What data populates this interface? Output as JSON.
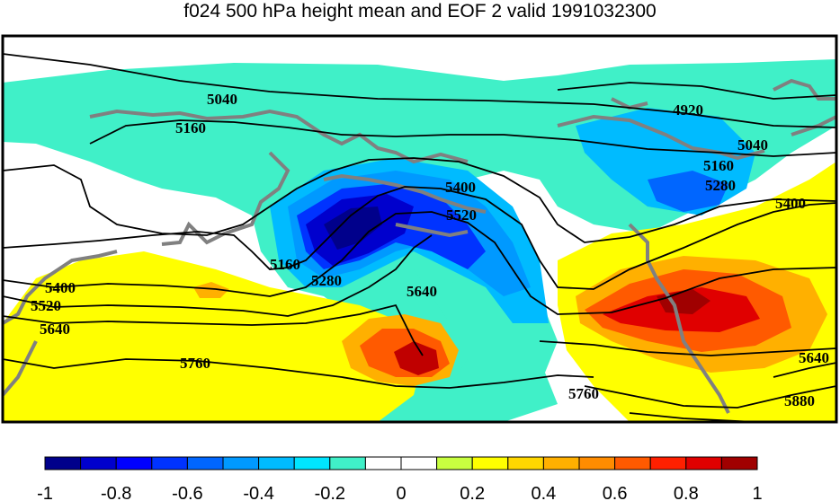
{
  "title": "f024 500 hPa height mean and EOF 2 valid 1991032300",
  "contour_labels": [
    "5040",
    "5160",
    "4920",
    "5040",
    "5160",
    "5280",
    "5400",
    "5520",
    "5400",
    "5160",
    "5280",
    "5640",
    "5400",
    "5520",
    "5640",
    "5760",
    "5760",
    "5640",
    "5880"
  ],
  "colorbar": {
    "colors": [
      "#00008b",
      "#0000cd",
      "#0000ff",
      "#0033ff",
      "#0066ff",
      "#0099ff",
      "#00bbff",
      "#00e5ff",
      "#40f0c8",
      "#ffffff",
      "#ffffff",
      "#c8ff40",
      "#ffff00",
      "#ffd700",
      "#ffb000",
      "#ff8c00",
      "#ff5a00",
      "#ff2000",
      "#e00000",
      "#a00000"
    ],
    "tick_labels": [
      "-1",
      "-0.8",
      "-0.6",
      "-0.4",
      "-0.2",
      "0",
      "0.2",
      "0.4",
      "0.6",
      "0.8",
      "1"
    ]
  }
}
